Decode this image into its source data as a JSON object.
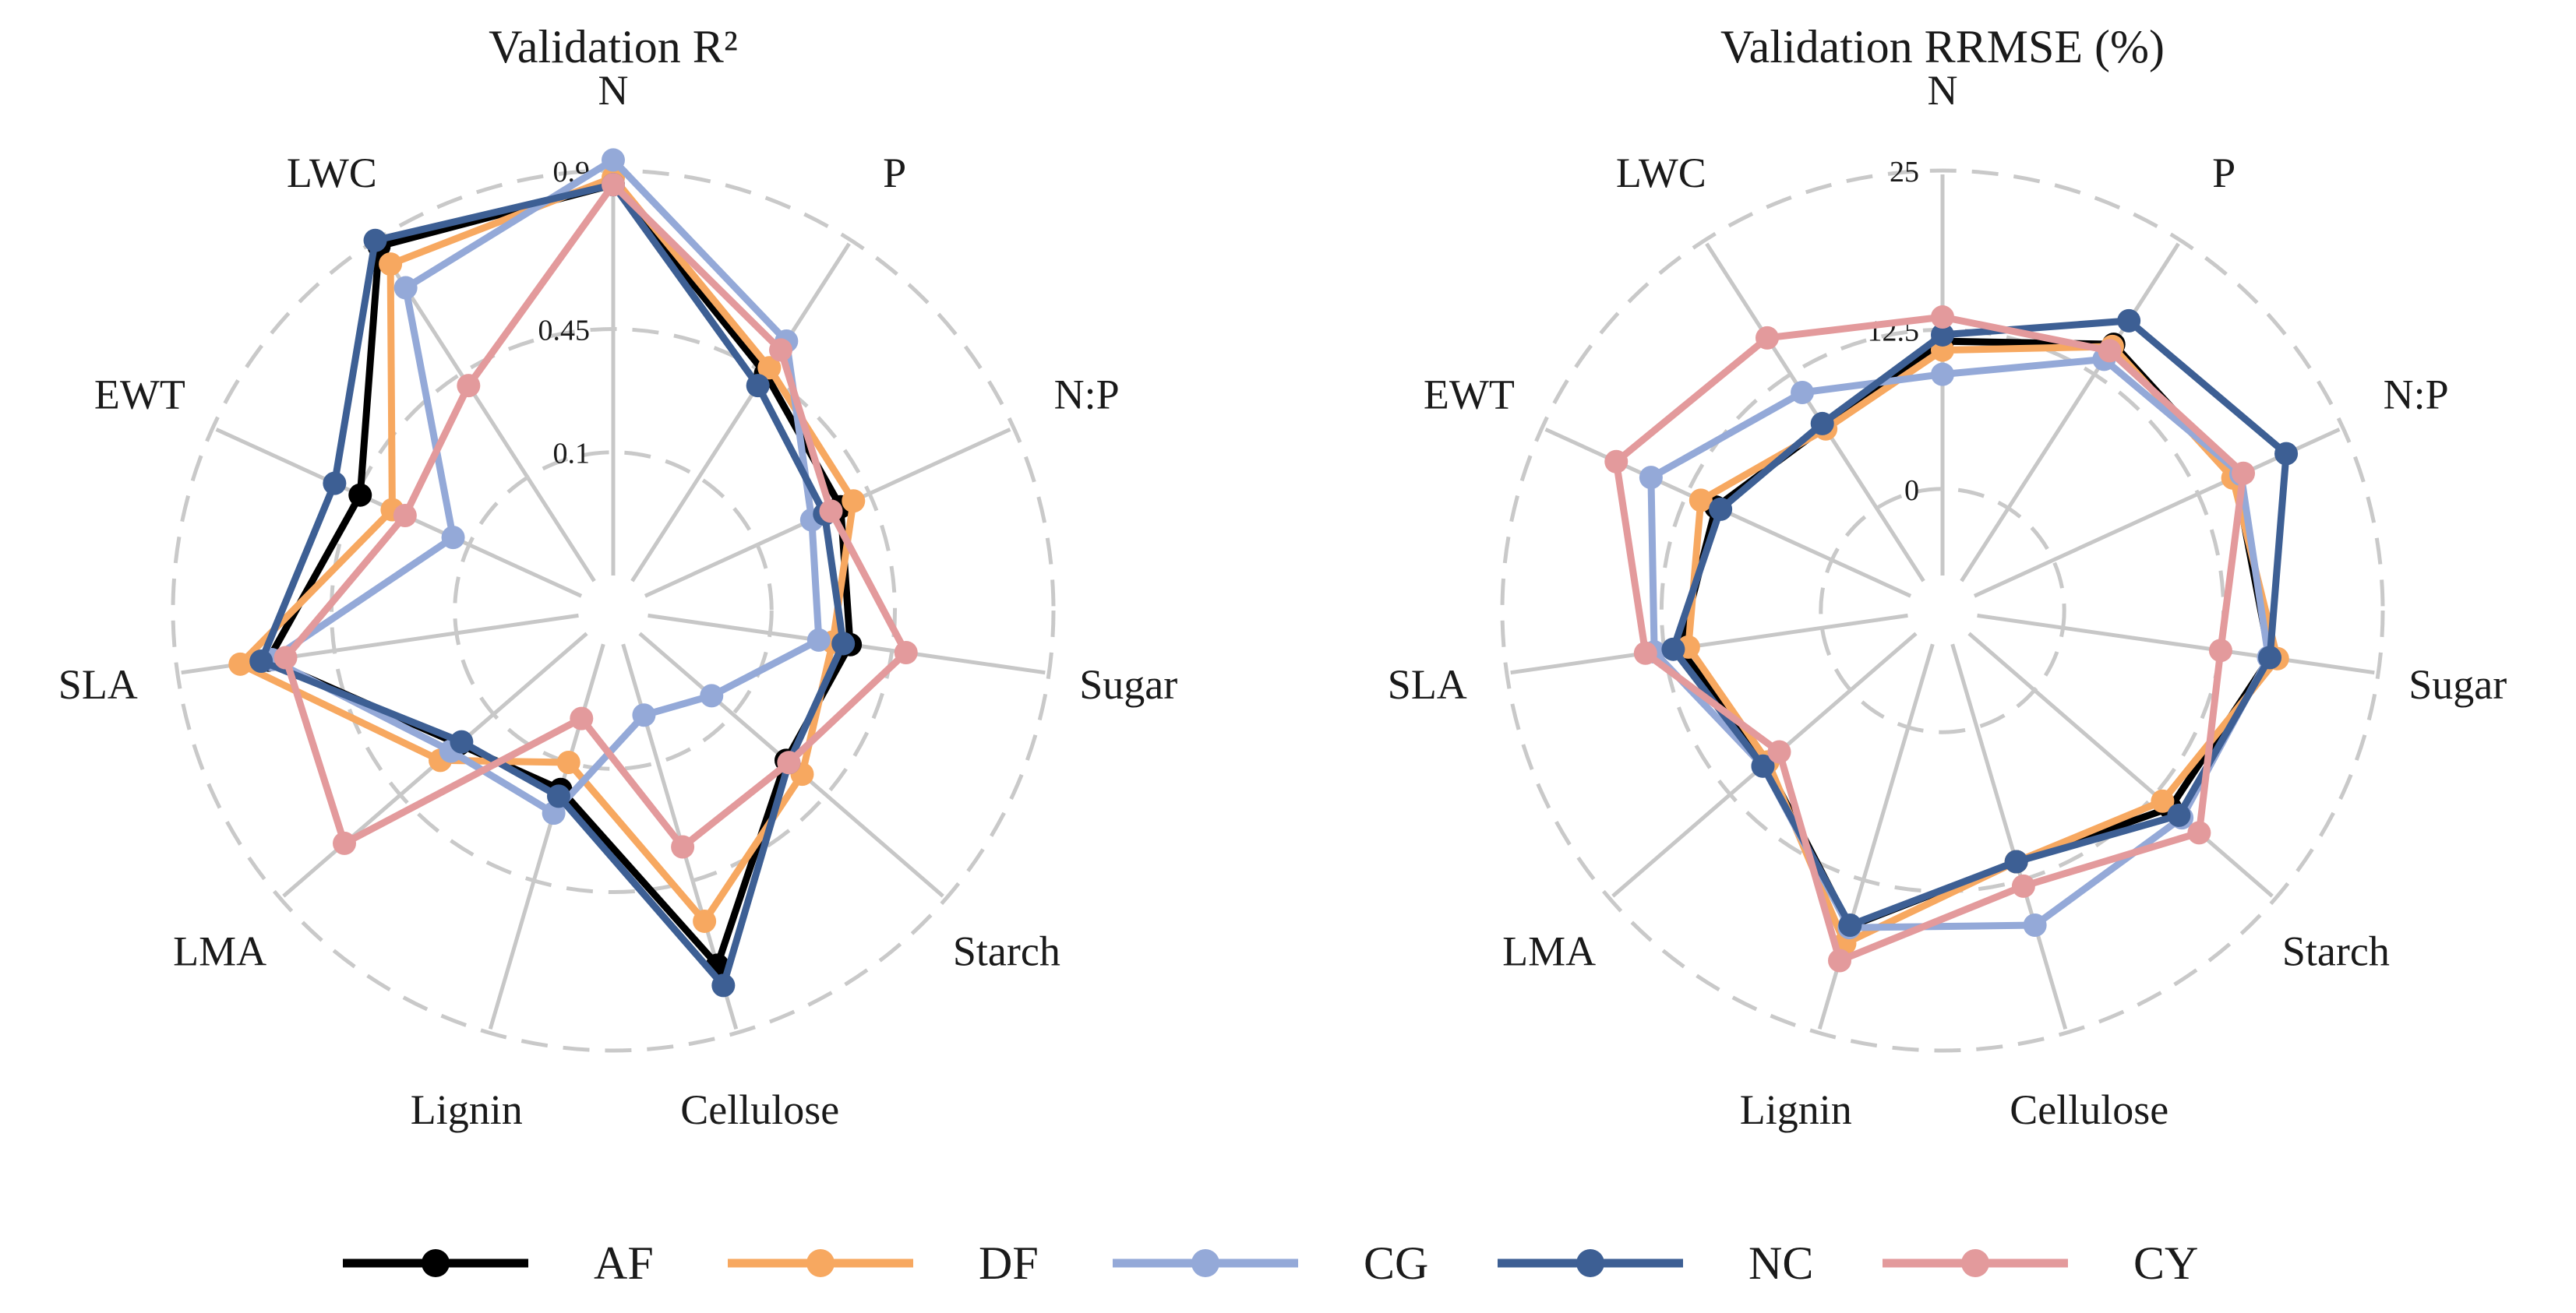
{
  "chart_data": [
    {
      "type": "radar",
      "title": "Validation R²",
      "axes": [
        "N",
        "P",
        "N:P",
        "Sugar",
        "Starch",
        "Cellulose",
        "Lignin",
        "LMA",
        "SLA",
        "EWT",
        "LWC"
      ],
      "rlim": [
        -0.25,
        0.9
      ],
      "tick_values": [
        0.1,
        0.45,
        0.9
      ],
      "tick_labels": [
        "0.1",
        "0.45",
        "0.9"
      ],
      "series": [
        {
          "name": "AF",
          "values": [
            0.86,
            0.45,
            0.36,
            0.33,
            0.3,
            0.7,
            0.18,
            0.23,
            0.64,
            0.44,
            0.88
          ]
        },
        {
          "name": "DF",
          "values": [
            0.88,
            0.47,
            0.4,
            0.28,
            0.36,
            0.57,
            0.1,
            0.3,
            0.72,
            0.34,
            0.82
          ]
        },
        {
          "name": "CG",
          "values": [
            0.93,
            0.56,
            0.27,
            0.24,
            0.02,
            -0.04,
            0.25,
            0.26,
            0.63,
            0.15,
            0.74
          ]
        },
        {
          "name": "NC",
          "values": [
            0.86,
            0.41,
            0.31,
            0.31,
            0.31,
            0.76,
            0.2,
            0.22,
            0.66,
            0.52,
            0.9
          ]
        },
        {
          "name": "CY",
          "values": [
            0.86,
            0.53,
            0.33,
            0.49,
            0.31,
            0.35,
            -0.03,
            0.66,
            0.59,
            0.3,
            0.41
          ]
        }
      ]
    },
    {
      "type": "radar",
      "title": "Validation RRMSE (%)",
      "axes": [
        "N",
        "P",
        "N:P",
        "Sugar",
        "Starch",
        "Cellulose",
        "Lignin",
        "LMA",
        "SLA",
        "EWT",
        "LWC"
      ],
      "rlim": [
        -6.8,
        25
      ],
      "tick_values": [
        0,
        12.5,
        25
      ],
      "tick_labels": [
        "0",
        "12.5",
        "25"
      ],
      "series": [
        {
          "name": "AF",
          "values": [
            11.6,
            15.3,
            15.7,
            16.4,
            14.1,
            11.0,
            16.3,
            8.8,
            11.3,
            10.0,
            7.6
          ]
        },
        {
          "name": "DF",
          "values": [
            10.9,
            15.1,
            15.5,
            17.0,
            13.3,
            11.0,
            17.7,
            8.6,
            10.6,
            11.3,
            7.4
          ]
        },
        {
          "name": "CG",
          "values": [
            9.0,
            13.9,
            16.2,
            16.3,
            15.3,
            16.2,
            16.4,
            9.1,
            13.3,
            15.6,
            10.8
          ]
        },
        {
          "name": "NC",
          "values": [
            12.1,
            17.5,
            20.1,
            16.4,
            15.0,
            11.0,
            16.2,
            9.1,
            11.8,
            9.6,
            7.9
          ]
        },
        {
          "name": "CY",
          "values": [
            13.5,
            14.7,
            16.4,
            12.5,
            17.1,
            13.0,
            19.1,
            7.4,
            14.0,
            18.6,
            15.9
          ]
        }
      ]
    }
  ],
  "legend": {
    "items": [
      {
        "name": "AF",
        "color": "#000000"
      },
      {
        "name": "DF",
        "color": "#f7a860"
      },
      {
        "name": "CG",
        "color": "#94a9d8"
      },
      {
        "name": "NC",
        "color": "#3d5f94"
      },
      {
        "name": "CY",
        "color": "#e39a9c"
      }
    ]
  }
}
